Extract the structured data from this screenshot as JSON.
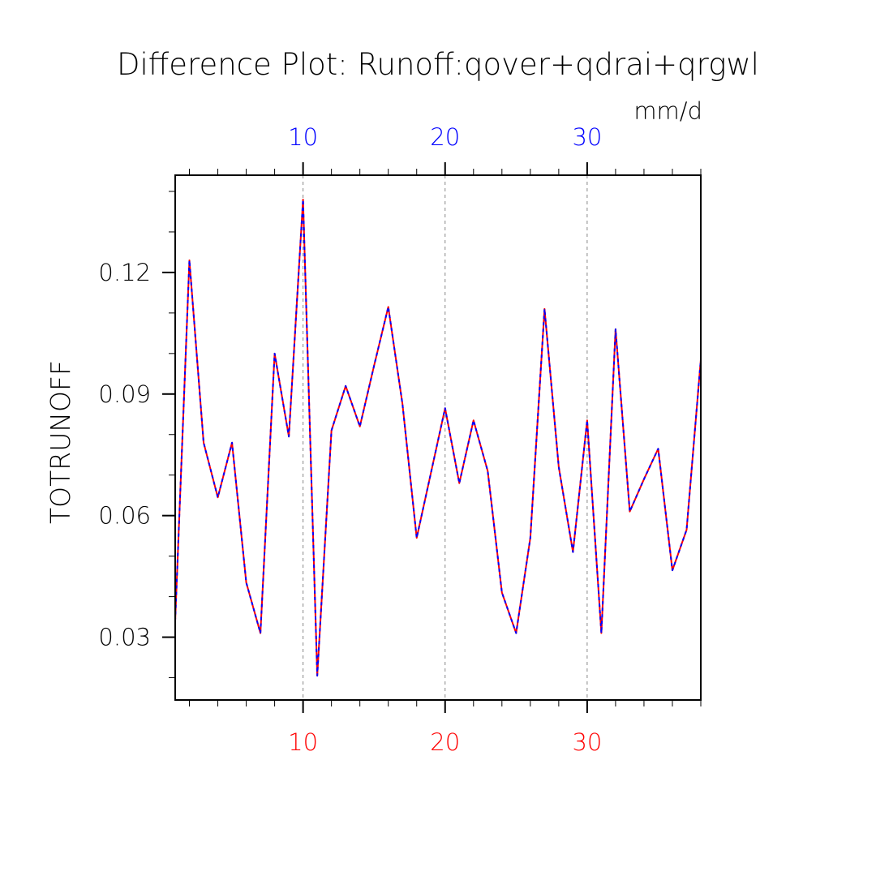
{
  "chart_data": {
    "type": "line",
    "title": "Difference Plot: Runoff:qover+qdrai+qrgwl",
    "units": "mm/d",
    "ylabel": "TOTRUNOFF",
    "xlim": [
      1,
      38
    ],
    "ylim": [
      0.0145,
      0.144
    ],
    "y_ticks": [
      {
        "value": 0.03,
        "label": "0.03"
      },
      {
        "value": 0.06,
        "label": "0.06"
      },
      {
        "value": 0.09,
        "label": "0.09"
      },
      {
        "value": 0.12,
        "label": "0.12"
      }
    ],
    "x_ticks_top": [
      {
        "value": 10,
        "label": "10"
      },
      {
        "value": 20,
        "label": "20"
      },
      {
        "value": 30,
        "label": "30"
      }
    ],
    "x_ticks_bottom": [
      {
        "value": 10,
        "label": "10"
      },
      {
        "value": 20,
        "label": "20"
      },
      {
        "value": 30,
        "label": "30"
      }
    ],
    "grid_x": [
      10,
      20,
      30
    ],
    "x": [
      1,
      2,
      3,
      4,
      5,
      6,
      7,
      8,
      9,
      10,
      11,
      12,
      13,
      14,
      15,
      16,
      17,
      18,
      19,
      20,
      21,
      22,
      23,
      24,
      25,
      26,
      27,
      28,
      29,
      30,
      31,
      32,
      33,
      34,
      35,
      36,
      37,
      38
    ],
    "series": [
      {
        "color": "#ff0000",
        "values": [
          0.034,
          0.123,
          0.078,
          0.0645,
          0.078,
          0.0435,
          0.031,
          0.1,
          0.0795,
          0.138,
          0.0205,
          0.081,
          0.092,
          0.082,
          0.097,
          0.1115,
          0.0875,
          0.0545,
          0.0705,
          0.0865,
          0.068,
          0.0835,
          0.071,
          0.041,
          0.031,
          0.0545,
          0.111,
          0.072,
          0.051,
          0.0835,
          0.031,
          0.106,
          0.061,
          0.069,
          0.0765,
          0.0465,
          0.0565,
          0.0985
        ]
      },
      {
        "color": "#0000ff",
        "values": [
          0.034,
          0.123,
          0.078,
          0.0645,
          0.078,
          0.0435,
          0.031,
          0.1,
          0.0795,
          0.138,
          0.0205,
          0.081,
          0.092,
          0.082,
          0.097,
          0.1115,
          0.0875,
          0.0545,
          0.0705,
          0.0865,
          0.068,
          0.0835,
          0.071,
          0.041,
          0.031,
          0.0545,
          0.111,
          0.072,
          0.051,
          0.0835,
          0.031,
          0.106,
          0.061,
          0.069,
          0.0765,
          0.0465,
          0.0565,
          0.0985
        ]
      }
    ],
    "colors": {
      "top_axis": "#0000ff",
      "bottom_axis": "#ff0000",
      "text": "#000000",
      "grid": "#888888"
    }
  }
}
